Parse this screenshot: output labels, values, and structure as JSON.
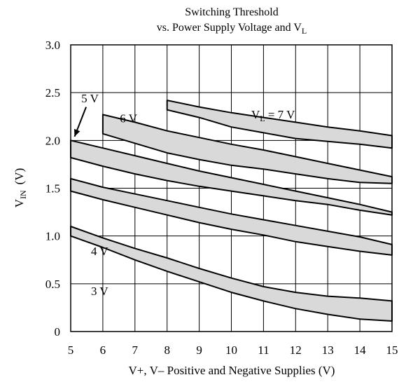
{
  "chart_data": {
    "type": "area",
    "title_lines": [
      "Switching Threshold",
      "vs. Power Supply Voltage and V",
      "L"
    ],
    "xlabel": "V+, V– Positive and Negative Supplies (V)",
    "ylabel_main": "V",
    "ylabel_sub": "IN",
    "ylabel_unit": "(V)",
    "xlim": [
      5,
      15
    ],
    "ylim": [
      0,
      3.0
    ],
    "grid": true,
    "x_ticks": [
      "5",
      "6",
      "7",
      "8",
      "9",
      "10",
      "11",
      "12",
      "13",
      "14",
      "15"
    ],
    "y_ticks": [
      "0",
      "0.5",
      "1.0",
      "1.5",
      "2.0",
      "2.5",
      "3.0"
    ],
    "series": [
      {
        "name": "3 V",
        "x": [
          5,
          6,
          7,
          8,
          9,
          10,
          11,
          12,
          13,
          14,
          15
        ],
        "upper": [
          1.1,
          0.98,
          0.87,
          0.77,
          0.66,
          0.56,
          0.47,
          0.41,
          0.37,
          0.35,
          0.32
        ],
        "lower": [
          1.0,
          0.88,
          0.75,
          0.63,
          0.52,
          0.41,
          0.32,
          0.24,
          0.18,
          0.13,
          0.11
        ]
      },
      {
        "name": "4 V",
        "x": [
          5,
          6,
          7,
          8,
          9,
          10,
          11,
          12,
          13,
          14,
          15
        ],
        "upper": [
          1.6,
          1.51,
          1.44,
          1.37,
          1.3,
          1.23,
          1.17,
          1.11,
          1.05,
          0.99,
          0.91
        ],
        "lower": [
          1.47,
          1.38,
          1.3,
          1.22,
          1.14,
          1.07,
          1.01,
          0.94,
          0.89,
          0.84,
          0.8
        ]
      },
      {
        "name": "5 V",
        "x": [
          5,
          6,
          7,
          8,
          9,
          10,
          11,
          12,
          13,
          14,
          15
        ],
        "upper": [
          2.0,
          1.92,
          1.84,
          1.76,
          1.68,
          1.61,
          1.54,
          1.47,
          1.4,
          1.33,
          1.25
        ],
        "lower": [
          1.82,
          1.73,
          1.65,
          1.58,
          1.52,
          1.47,
          1.42,
          1.37,
          1.33,
          1.27,
          1.22
        ]
      },
      {
        "name": "6 V",
        "x": [
          6,
          7,
          8,
          9,
          10,
          11,
          12,
          13,
          14,
          15
        ],
        "upper": [
          2.27,
          2.19,
          2.1,
          2.03,
          1.96,
          1.9,
          1.83,
          1.76,
          1.69,
          1.62
        ],
        "lower": [
          2.07,
          1.97,
          1.87,
          1.8,
          1.74,
          1.7,
          1.65,
          1.6,
          1.56,
          1.55
        ]
      },
      {
        "name": "V_L = 7 V",
        "x": [
          8,
          9,
          10,
          11,
          12,
          13,
          14,
          15
        ],
        "upper": [
          2.42,
          2.35,
          2.29,
          2.24,
          2.19,
          2.14,
          2.1,
          2.05
        ],
        "lower": [
          2.32,
          2.24,
          2.14,
          2.08,
          2.02,
          1.99,
          1.96,
          1.92
        ]
      }
    ],
    "band_labels": [
      {
        "series": "3 V",
        "text": "3 V"
      },
      {
        "series": "4 V",
        "text": "4 V"
      },
      {
        "series": "5 V",
        "text": "5 V"
      },
      {
        "series": "6 V",
        "text": "6 V"
      },
      {
        "series": "V_L = 7 V",
        "text_main": "V",
        "text_sub": "L",
        "text_rest": " = 7 V"
      }
    ],
    "fill_color": "#d9d9d9",
    "line_color": "#000000"
  }
}
